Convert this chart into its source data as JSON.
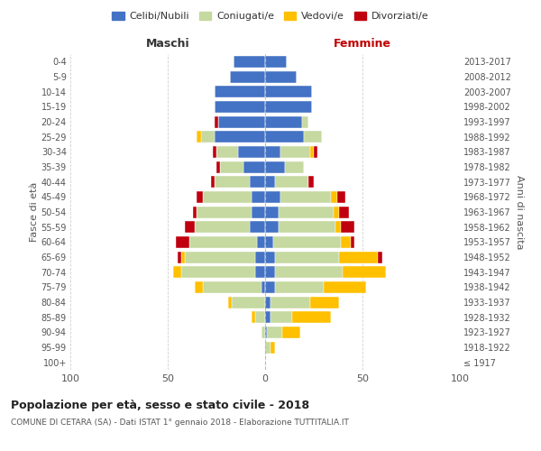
{
  "age_groups": [
    "100+",
    "95-99",
    "90-94",
    "85-89",
    "80-84",
    "75-79",
    "70-74",
    "65-69",
    "60-64",
    "55-59",
    "50-54",
    "45-49",
    "40-44",
    "35-39",
    "30-34",
    "25-29",
    "20-24",
    "15-19",
    "10-14",
    "5-9",
    "0-4"
  ],
  "birth_years": [
    "≤ 1917",
    "1918-1922",
    "1923-1927",
    "1928-1932",
    "1933-1937",
    "1938-1942",
    "1943-1947",
    "1948-1952",
    "1953-1957",
    "1958-1962",
    "1963-1967",
    "1968-1972",
    "1973-1977",
    "1978-1982",
    "1983-1987",
    "1988-1992",
    "1993-1997",
    "1998-2002",
    "2003-2007",
    "2008-2012",
    "2013-2017"
  ],
  "male_celibe": [
    0,
    0,
    0,
    0,
    0,
    2,
    5,
    5,
    4,
    8,
    7,
    7,
    8,
    11,
    14,
    26,
    24,
    26,
    26,
    18,
    16
  ],
  "male_coniugato": [
    0,
    0,
    2,
    5,
    17,
    30,
    38,
    36,
    35,
    28,
    28,
    25,
    18,
    12,
    11,
    7,
    0,
    0,
    0,
    0,
    0
  ],
  "male_vedovo": [
    0,
    0,
    0,
    2,
    2,
    4,
    4,
    2,
    0,
    0,
    0,
    0,
    0,
    0,
    0,
    2,
    0,
    0,
    0,
    0,
    0
  ],
  "male_divorziato": [
    0,
    0,
    0,
    0,
    0,
    0,
    0,
    2,
    7,
    5,
    2,
    3,
    2,
    2,
    2,
    0,
    2,
    0,
    0,
    0,
    0
  ],
  "female_celibe": [
    0,
    0,
    1,
    3,
    3,
    5,
    5,
    5,
    4,
    7,
    7,
    8,
    5,
    10,
    8,
    20,
    19,
    24,
    24,
    16,
    11
  ],
  "female_coniugato": [
    0,
    3,
    8,
    11,
    20,
    25,
    35,
    33,
    35,
    29,
    28,
    26,
    17,
    10,
    15,
    9,
    3,
    0,
    0,
    0,
    0
  ],
  "female_vedovo": [
    0,
    2,
    9,
    20,
    15,
    22,
    22,
    20,
    5,
    3,
    3,
    3,
    0,
    0,
    2,
    0,
    0,
    0,
    0,
    0,
    0
  ],
  "female_divorziato": [
    0,
    0,
    0,
    0,
    0,
    0,
    0,
    2,
    2,
    7,
    5,
    4,
    3,
    0,
    2,
    0,
    0,
    0,
    0,
    0,
    0
  ],
  "colors": {
    "celibe": "#4472c4",
    "coniugato": "#c5d9a0",
    "vedovo": "#ffc000",
    "divorziato": "#c0000e"
  },
  "title1": "Popolazione per età, sesso e stato civile - 2018",
  "title2": "COMUNE DI CETARA (SA) - Dati ISTAT 1° gennaio 2018 - Elaborazione TUTTITALIA.IT",
  "xlim": 100,
  "xlabel_left": "Maschi",
  "xlabel_right": "Femmine",
  "ylabel_left": "Fasce di età",
  "ylabel_right": "Anni di nascita",
  "bg_color": "#ffffff",
  "grid_color": "#cccccc",
  "legend_labels": [
    "Celibi/Nubili",
    "Coniugati/e",
    "Vedovi/e",
    "Divorziati/e"
  ]
}
